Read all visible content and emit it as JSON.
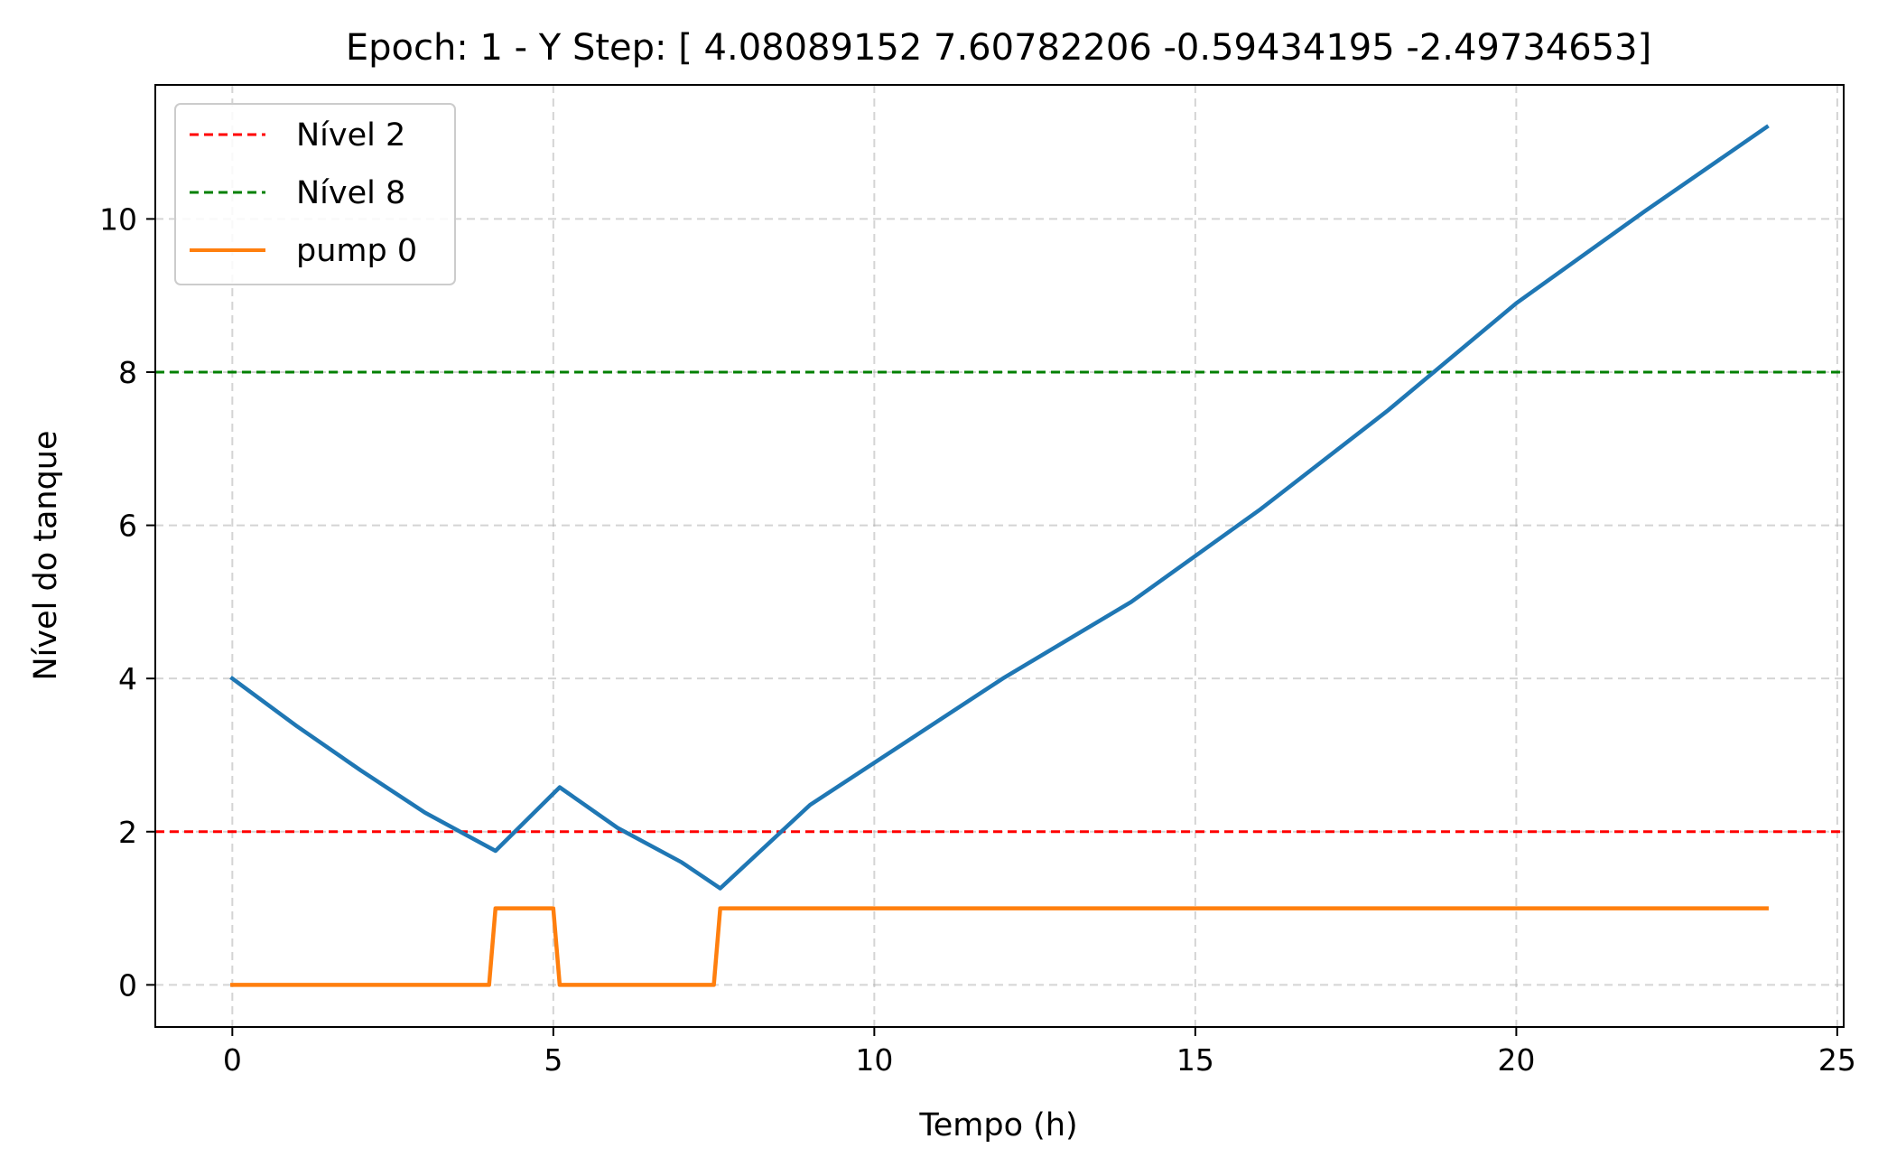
{
  "chart_data": {
    "type": "line",
    "title": "Epoch: 1 - Y Step: [ 4.08089152  7.60782206 -0.59434195 -2.49734653]",
    "xlabel": "Tempo (h)",
    "ylabel": "Nível do tanque",
    "xlim": [
      -1.2,
      25.1
    ],
    "ylim": [
      -0.55,
      11.75
    ],
    "xticks": [
      0,
      5,
      10,
      15,
      20,
      25
    ],
    "xtick_labels": [
      "0",
      "5",
      "10",
      "15",
      "20",
      "25"
    ],
    "yticks": [
      0,
      2,
      4,
      6,
      8,
      10
    ],
    "ytick_labels": [
      "0",
      "2",
      "4",
      "6",
      "8",
      "10"
    ],
    "grid": true,
    "legend_position": "top-left",
    "reference_lines": [
      {
        "name": "Nível 2",
        "y": 2,
        "color": "#ff0000",
        "style": "dashed"
      },
      {
        "name": "Nível 8",
        "y": 8,
        "color": "#008000",
        "style": "dashed"
      }
    ],
    "series": [
      {
        "color": "#1f77b4",
        "x": [
          0,
          1,
          2,
          3,
          4.1,
          5.1,
          6,
          7,
          7.6,
          9,
          10,
          12,
          14,
          16,
          18,
          20,
          22,
          23.9
        ],
        "y": [
          4.0,
          3.38,
          2.8,
          2.25,
          1.75,
          2.58,
          2.05,
          1.6,
          1.26,
          2.35,
          2.9,
          4.0,
          5.0,
          6.2,
          7.5,
          8.9,
          10.1,
          11.2
        ]
      },
      {
        "name": "pump 0",
        "color": "#ff7f0e",
        "x": [
          0,
          4.0,
          4.1,
          5.0,
          5.1,
          7.5,
          7.6,
          23.9
        ],
        "y": [
          0,
          0,
          1,
          1,
          0,
          0,
          1,
          1
        ]
      }
    ]
  }
}
